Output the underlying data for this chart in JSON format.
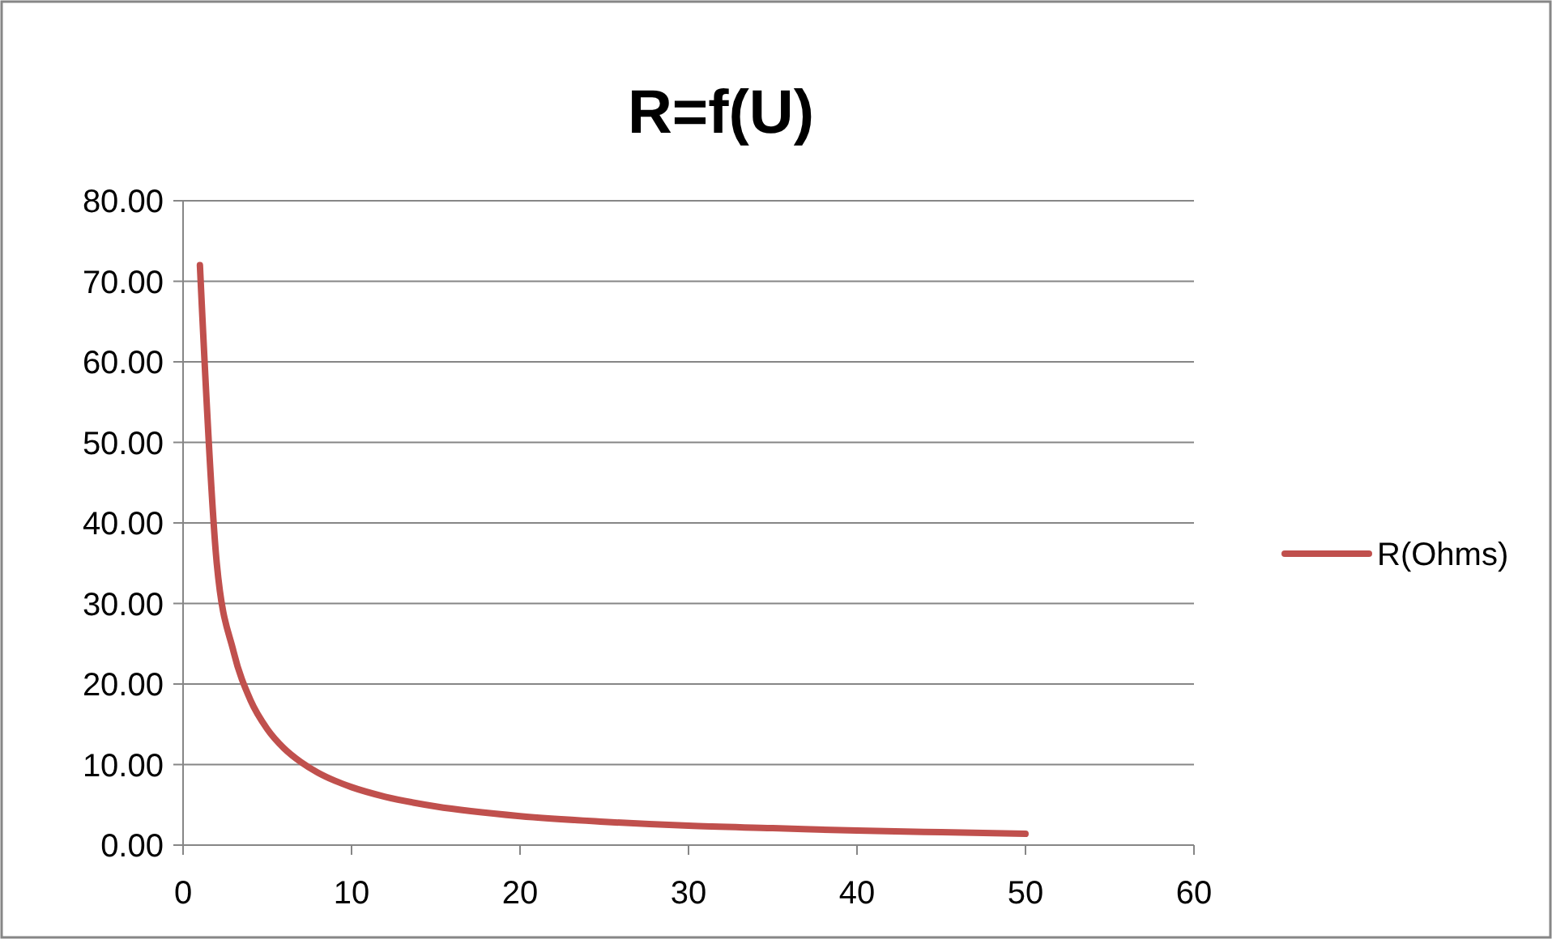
{
  "chart_data": {
    "type": "line",
    "title": "R=f(U)",
    "x": [
      1,
      2,
      3,
      4,
      5,
      6,
      7,
      8,
      9,
      10,
      12,
      15,
      20,
      25,
      30,
      35,
      40,
      45,
      50
    ],
    "series": [
      {
        "name": "R(Ohms)",
        "color": "#c0504d",
        "values": [
          72,
          35,
          24,
          18,
          14.4,
          12,
          10.3,
          9,
          8,
          7.2,
          6,
          4.8,
          3.6,
          2.9,
          2.4,
          2.1,
          1.8,
          1.6,
          1.4
        ]
      }
    ],
    "xlim": [
      0,
      60
    ],
    "xticks": [
      0,
      10,
      20,
      30,
      40,
      50,
      60
    ],
    "ylim": [
      0,
      80
    ],
    "yticks": [
      {
        "value": 0,
        "label": "0.00"
      },
      {
        "value": 10,
        "label": "10.00"
      },
      {
        "value": 20,
        "label": "20.00"
      },
      {
        "value": 30,
        "label": "30.00"
      },
      {
        "value": 40,
        "label": "40.00"
      },
      {
        "value": 50,
        "label": "50.00"
      },
      {
        "value": 60,
        "label": "60.00"
      },
      {
        "value": 70,
        "label": "70.00"
      },
      {
        "value": 80,
        "label": "80.00"
      }
    ],
    "grid": "y",
    "legend": "right",
    "marker": "none",
    "line_style": "solid"
  }
}
